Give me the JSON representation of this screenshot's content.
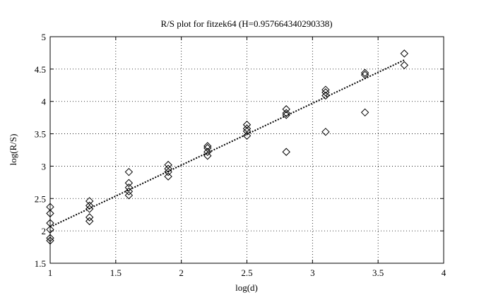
{
  "chart_data": {
    "type": "scatter",
    "title": "R/S plot for fitzek64 (H=0.957664340290338)",
    "x_label": "log(d)",
    "y_label": "log(R/S)",
    "x": [
      1,
      1,
      1,
      1,
      1,
      1,
      1.3,
      1.3,
      1.3,
      1.3,
      1.3,
      1.6,
      1.6,
      1.6,
      1.6,
      1.6,
      1.9,
      1.9,
      1.9,
      1.9,
      2.2,
      2.2,
      2.2,
      2.2,
      2.5,
      2.5,
      2.5,
      2.5,
      2.8,
      2.8,
      2.8,
      2.8,
      3.1,
      3.1,
      3.1,
      3.1,
      3.4,
      3.4,
      3.4,
      3.7,
      3.7
    ],
    "values": [
      2.37,
      2.27,
      2.12,
      2.02,
      1.89,
      1.85,
      2.46,
      2.39,
      2.34,
      2.21,
      2.15,
      2.91,
      2.74,
      2.67,
      2.61,
      2.55,
      3.02,
      2.96,
      2.91,
      2.84,
      3.31,
      3.28,
      3.22,
      3.16,
      3.64,
      3.58,
      3.54,
      3.47,
      3.88,
      3.82,
      3.79,
      3.22,
      4.18,
      4.14,
      4.09,
      3.53,
      4.44,
      4.41,
      3.83,
      4.74,
      4.56
    ],
    "color": "#000000",
    "fit": {
      "x": [
        1,
        3.7
      ],
      "y": [
        2.06,
        4.64
      ]
    },
    "xlim": [
      1,
      4
    ],
    "ylim": [
      1.5,
      5
    ],
    "xticks": [
      1,
      1.5,
      2,
      2.5,
      3,
      3.5,
      4
    ],
    "yticks": [
      1.5,
      2,
      2.5,
      3,
      3.5,
      4,
      4.5,
      5
    ],
    "grid": true
  }
}
